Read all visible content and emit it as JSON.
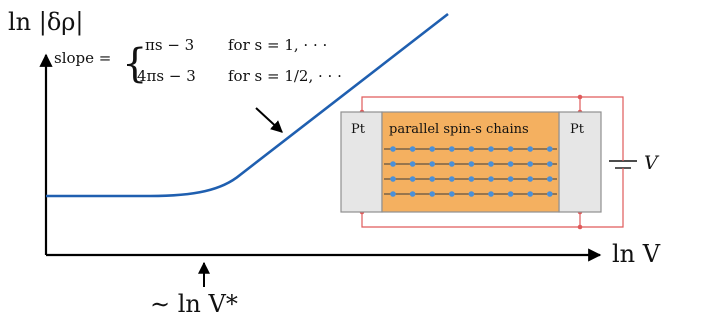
{
  "axes": {
    "y_label": "ln |δρ|",
    "x_label": "ln V",
    "threshold_label": "∼ ln V*"
  },
  "slope": {
    "lhs": "slope =",
    "case1_expr": "πs − 3",
    "case1_cond": "for s = 1, · · ·",
    "case2_expr": "4πs − 3",
    "case2_cond": "for s = 1/2, · · ·"
  },
  "device": {
    "left_electrode": "Pt",
    "right_electrode": "Pt",
    "channel_label": "parallel spin-s chains",
    "source_label": "V",
    "chain_rows": 4,
    "sites_per_row": 9
  },
  "colors": {
    "curve": "#1f5fb0",
    "axes": "#000000",
    "channel": "#f4b060",
    "electrode": "#e6e6e6",
    "wire": "#e05a5a",
    "site": "#4a90d9"
  }
}
